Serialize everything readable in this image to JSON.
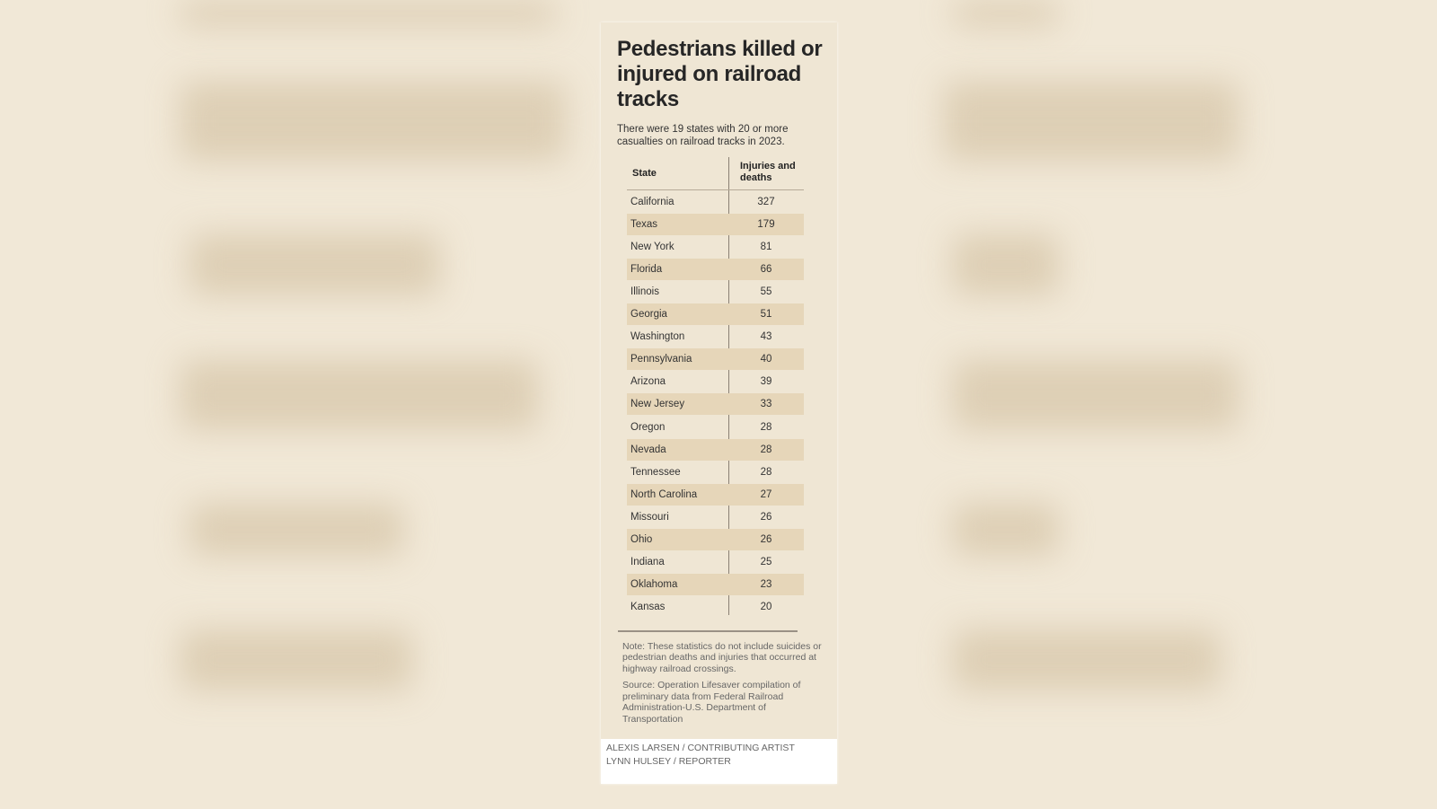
{
  "title": "Pedestrians killed or injured on railroad tracks",
  "subtitle": "There were 19 states with 20 or more casualties on railroad tracks in 2023.",
  "chart_data": {
    "type": "table",
    "columns": [
      "State",
      "Injuries and deaths"
    ],
    "rows": [
      [
        "California",
        327
      ],
      [
        "Texas",
        179
      ],
      [
        "New York",
        81
      ],
      [
        "Florida",
        66
      ],
      [
        "Illinois",
        55
      ],
      [
        "Georgia",
        51
      ],
      [
        "Washington",
        43
      ],
      [
        "Pennsylvania",
        40
      ],
      [
        "Arizona",
        39
      ],
      [
        "New Jersey",
        33
      ],
      [
        "Oregon",
        28
      ],
      [
        "Nevada",
        28
      ],
      [
        "Tennessee",
        28
      ],
      [
        "North Carolina",
        27
      ],
      [
        "Missouri",
        26
      ],
      [
        "Ohio",
        26
      ],
      [
        "Indiana",
        25
      ],
      [
        "Oklahoma",
        23
      ],
      [
        "Kansas",
        20
      ]
    ]
  },
  "note": "Note: These statistics do not include suicides or pedestrian deaths and injuries that occurred at highway railroad crossings.",
  "source": "Source: Operation Lifesaver compilation of preliminary data from Federal Railroad Administration-U.S. Department of Transportation",
  "credits": [
    "ALEXIS LARSEN / CONTRIBUTING ARTIST",
    "LYNN HULSEY / REPORTER"
  ],
  "colors": {
    "card": "#efe6d4",
    "shade": "#e6d6b9",
    "background": "#f1e8d7"
  }
}
